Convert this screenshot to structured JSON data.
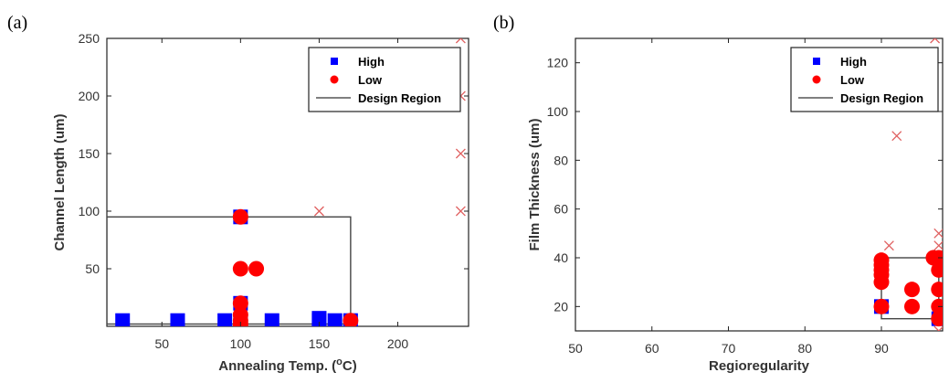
{
  "panels": [
    {
      "letter": "(a)",
      "chart_data": {
        "type": "scatter",
        "xlabel": "Annealing Temp. (",
        "xlabel_sup": "o",
        "xlabel_suffix": "C)",
        "ylabel": "Channel Length (um)",
        "xlim": [
          15,
          245
        ],
        "ylim": [
          0,
          250
        ],
        "xticks": [
          50,
          100,
          150,
          200
        ],
        "yticks": [
          50,
          100,
          150,
          200,
          250
        ],
        "grid": false,
        "legend_position": "top-right",
        "series": [
          {
            "name": "High",
            "color": "#0000ff",
            "marker": "square",
            "points": [
              [
                25,
                5
              ],
              [
                60,
                5
              ],
              [
                90,
                5
              ],
              [
                100,
                5
              ],
              [
                100,
                20
              ],
              [
                100,
                95
              ],
              [
                120,
                5
              ],
              [
                150,
                7
              ],
              [
                150,
                5
              ],
              [
                160,
                5
              ],
              [
                170,
                5
              ]
            ]
          },
          {
            "name": "Low",
            "color": "#ff0000",
            "marker": "circle",
            "points": [
              [
                100,
                95
              ],
              [
                100,
                50
              ],
              [
                110,
                50
              ],
              [
                100,
                20
              ],
              [
                100,
                10
              ],
              [
                100,
                5
              ],
              [
                100,
                2
              ],
              [
                170,
                5
              ]
            ]
          },
          {
            "name": "Design Region",
            "color": "#555555",
            "marker": "line",
            "rect": {
              "x0": 15,
              "x1": 170,
              "y0": 2,
              "y1": 95
            }
          },
          {
            "marker": "x",
            "color": "#e06060",
            "points": [
              [
                150,
                100
              ],
              [
                240,
                250
              ],
              [
                240,
                200
              ],
              [
                240,
                150
              ],
              [
                240,
                100
              ]
            ]
          }
        ]
      }
    },
    {
      "letter": "(b)",
      "chart_data": {
        "type": "scatter",
        "xlabel": "Regioregularity",
        "ylabel": "Film Thickness (um)",
        "xlim": [
          50,
          98
        ],
        "ylim": [
          10,
          130
        ],
        "xticks": [
          50,
          60,
          70,
          80,
          90
        ],
        "yticks": [
          20,
          40,
          60,
          80,
          100,
          120
        ],
        "grid": false,
        "legend_position": "top-right",
        "series": [
          {
            "name": "High",
            "color": "#0000ff",
            "marker": "square",
            "points": [
              [
                90,
                20
              ],
              [
                97.5,
                15
              ]
            ]
          },
          {
            "name": "Low",
            "color": "#ff0000",
            "marker": "circle",
            "points": [
              [
                90,
                20
              ],
              [
                90,
                30
              ],
              [
                90,
                33
              ],
              [
                90,
                35
              ],
              [
                90,
                37
              ],
              [
                90,
                39
              ],
              [
                94,
                20
              ],
              [
                94,
                27
              ],
              [
                96.8,
                40
              ],
              [
                97.5,
                40
              ],
              [
                97.5,
                35
              ],
              [
                97.5,
                27
              ],
              [
                97.5,
                20
              ],
              [
                97.5,
                15
              ]
            ]
          },
          {
            "name": "Design Region",
            "color": "#555555",
            "marker": "line",
            "rect": {
              "x0": 90,
              "x1": 97.5,
              "y0": 15,
              "y1": 40
            }
          },
          {
            "marker": "x",
            "color": "#e06060",
            "points": [
              [
                92,
                90
              ],
              [
                91,
                45
              ],
              [
                97,
                130
              ],
              [
                97.5,
                50
              ],
              [
                97.5,
                45
              ],
              [
                97.5,
                10
              ]
            ]
          }
        ]
      }
    }
  ]
}
